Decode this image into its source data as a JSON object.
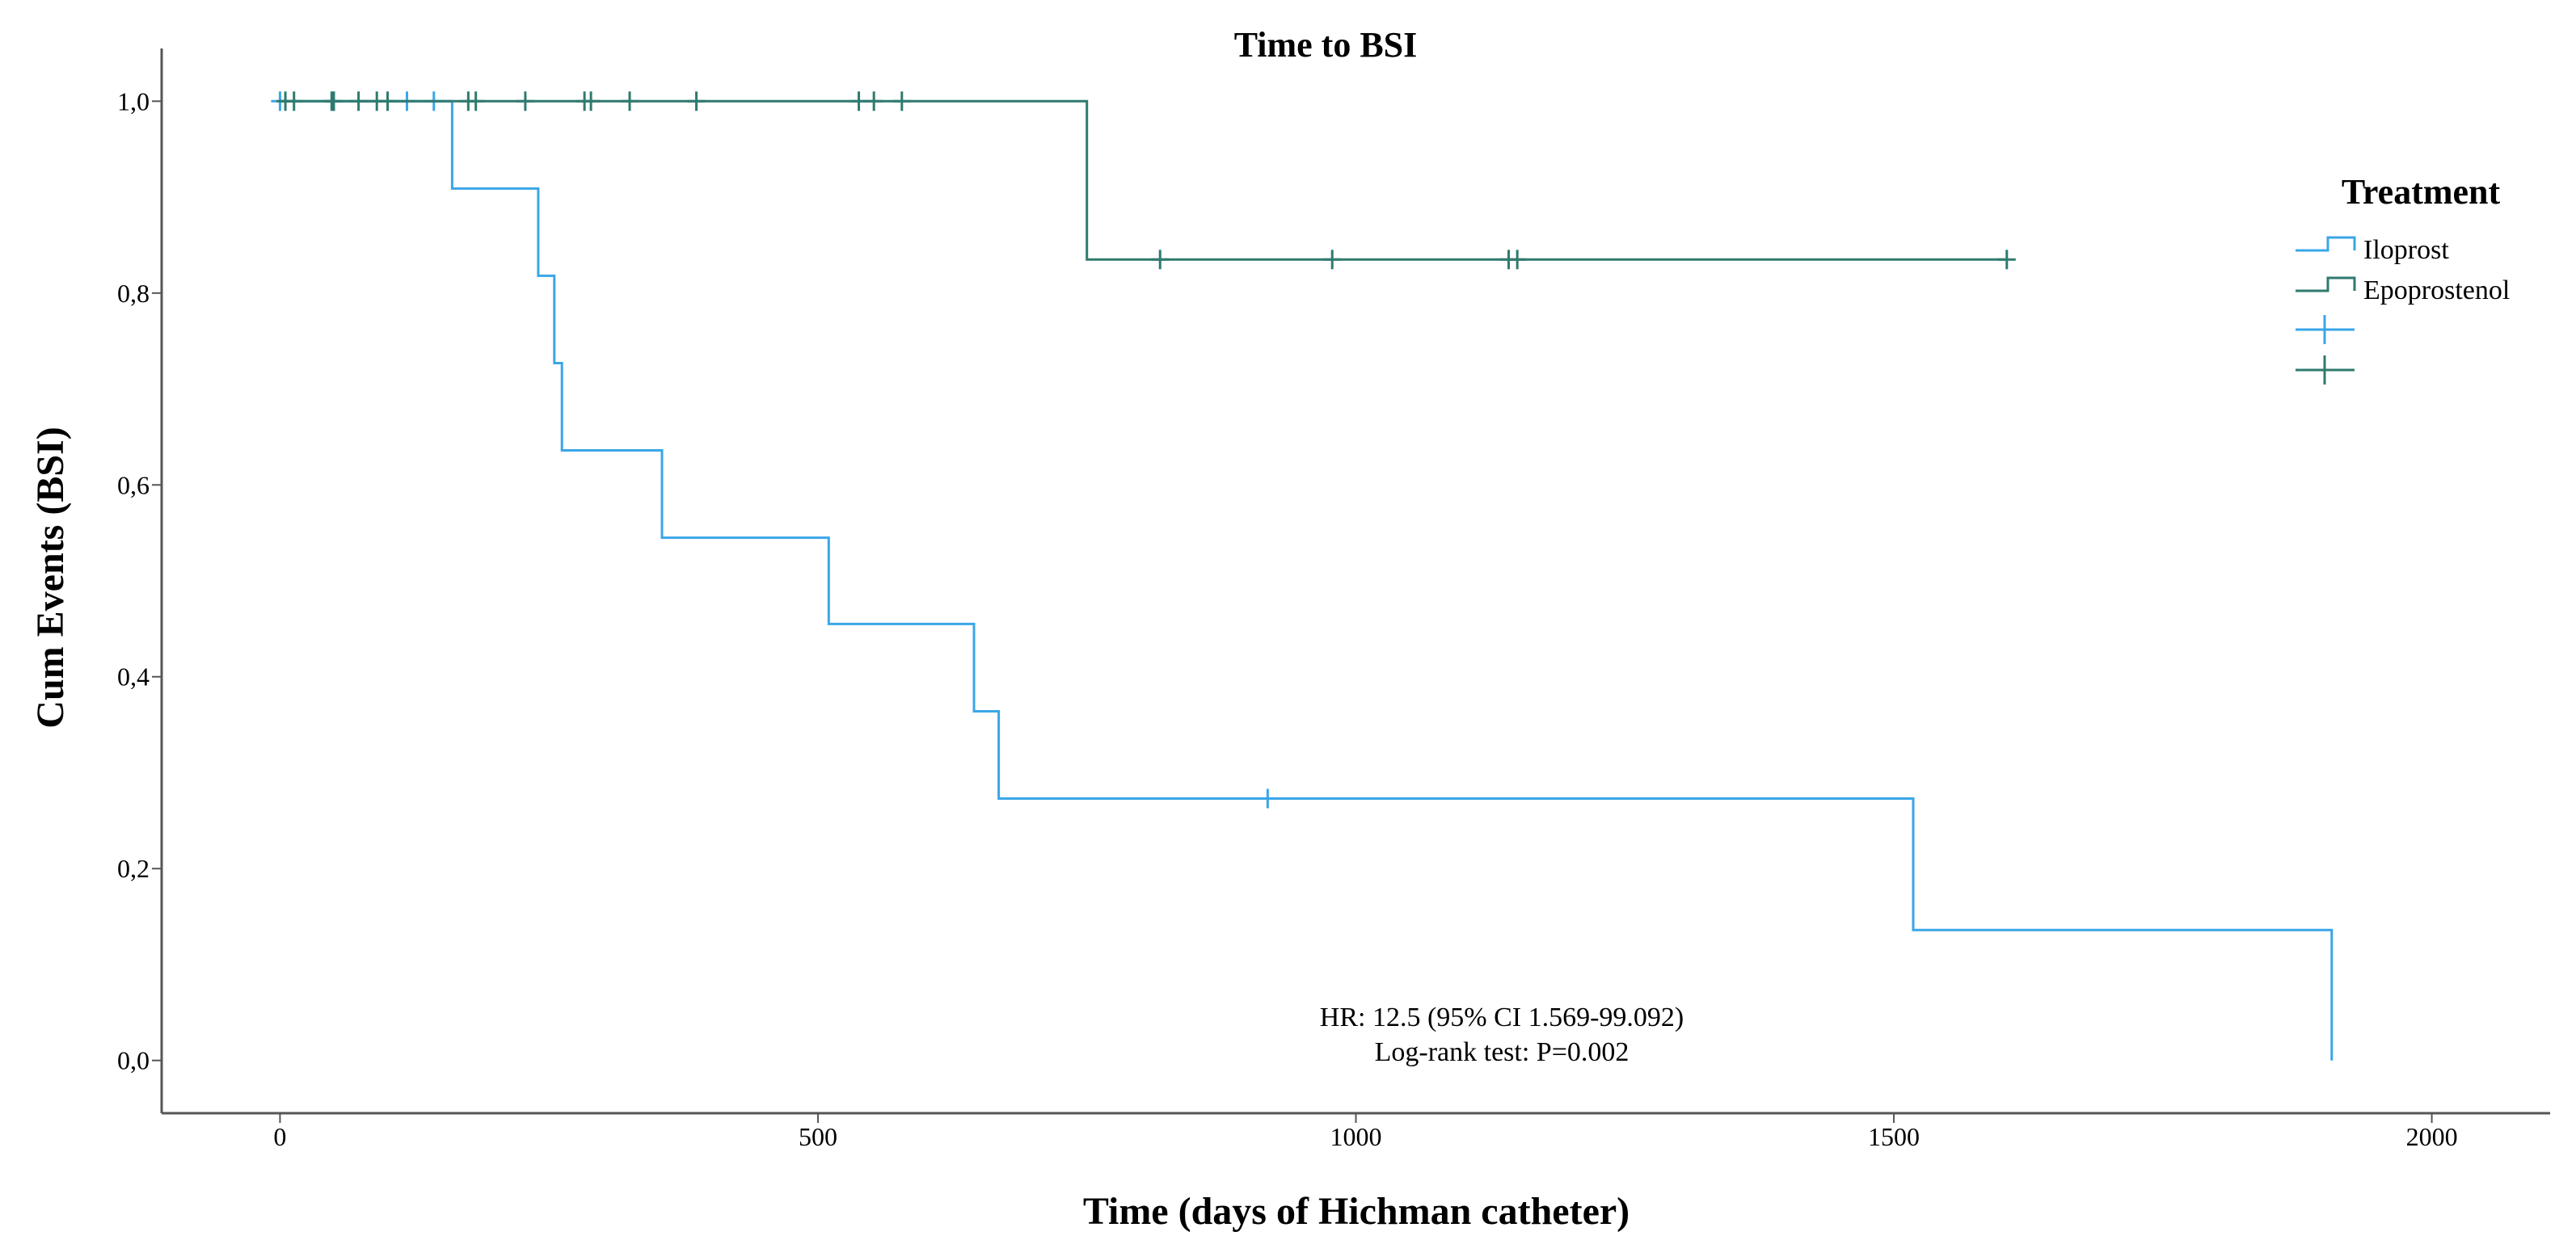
{
  "chart_data": {
    "type": "line",
    "subtype": "kaplan-meier-step",
    "title": "Time to BSI",
    "xlabel": "Time (days of Hichman catheter)",
    "ylabel": "Cum Events (BSI)",
    "xlim": [
      -110,
      2110
    ],
    "ylim": [
      -0.055,
      1.055
    ],
    "x_ticks": [
      0,
      500,
      1000,
      1500,
      2000
    ],
    "x_tick_labels": [
      "0",
      "500",
      "1000",
      "1500",
      "2000"
    ],
    "y_ticks": [
      0.0,
      0.2,
      0.4,
      0.6,
      0.8,
      1.0
    ],
    "y_tick_labels": [
      "0,0",
      "0,2",
      "0,4",
      "0,6",
      "0,8",
      "1,0"
    ],
    "grid": false,
    "legend": {
      "title": "Treatment",
      "position": "right",
      "entries": [
        "Iloprost",
        "Epoprostenol",
        "",
        ""
      ]
    },
    "series": [
      {
        "name": "Iloprost",
        "color": "#3aa6e8",
        "steps": [
          [
            0,
            1.0
          ],
          [
            160,
            1.0
          ],
          [
            160,
            0.909
          ],
          [
            240,
            0.909
          ],
          [
            240,
            0.818
          ],
          [
            255,
            0.818
          ],
          [
            255,
            0.727
          ],
          [
            262,
            0.727
          ],
          [
            262,
            0.636
          ],
          [
            355,
            0.636
          ],
          [
            355,
            0.545
          ],
          [
            510,
            0.545
          ],
          [
            510,
            0.455
          ],
          [
            645,
            0.455
          ],
          [
            645,
            0.364
          ],
          [
            668,
            0.364
          ],
          [
            668,
            0.273
          ],
          [
            1518,
            0.273
          ],
          [
            1518,
            0.136
          ],
          [
            1907,
            0.136
          ],
          [
            1907,
            0.0
          ]
        ],
        "censored": [
          [
            0,
            1.0
          ],
          [
            50,
            1.0
          ],
          [
            118,
            1.0
          ],
          [
            143,
            1.0
          ],
          [
            918,
            0.273
          ]
        ]
      },
      {
        "name": "Epoprostenol",
        "color": "#2f7a6e",
        "steps": [
          [
            0,
            1.0
          ],
          [
            750,
            1.0
          ],
          [
            750,
            0.835
          ],
          [
            1605,
            0.835
          ]
        ],
        "censored": [
          [
            5,
            1.0
          ],
          [
            13,
            1.0
          ],
          [
            48,
            1.0
          ],
          [
            50,
            1.0
          ],
          [
            73,
            1.0
          ],
          [
            90,
            1.0
          ],
          [
            100,
            1.0
          ],
          [
            175,
            1.0
          ],
          [
            182,
            1.0
          ],
          [
            228,
            1.0
          ],
          [
            283,
            1.0
          ],
          [
            289,
            1.0
          ],
          [
            325,
            1.0
          ],
          [
            387,
            1.0
          ],
          [
            538,
            1.0
          ],
          [
            552,
            1.0
          ],
          [
            578,
            1.0
          ],
          [
            818,
            0.835
          ],
          [
            978,
            0.835
          ],
          [
            1142,
            0.835
          ],
          [
            1150,
            0.835
          ],
          [
            1605,
            0.835
          ]
        ]
      }
    ],
    "annotations": [
      "HR: 12.5 (95% CI 1.569-99.092)",
      "Log-rank test: P=0.002"
    ]
  }
}
